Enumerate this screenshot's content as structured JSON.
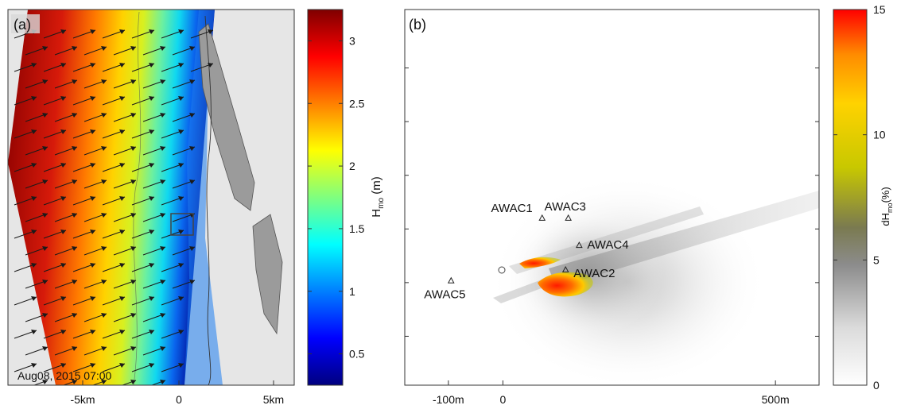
{
  "chart_data": [
    {
      "type": "heatmap",
      "panel_label": "(a)",
      "timestamp": "Aug08, 2015 07:00",
      "x_ticks": [
        "-5km",
        "0",
        "5km"
      ],
      "colorbar": {
        "label_main": "H",
        "label_sub": "mo",
        "label_unit": " (m)",
        "range": [
          0.25,
          3.25
        ],
        "ticks": [
          "0.5",
          "1",
          "1.5",
          "2",
          "2.5",
          "3"
        ],
        "tick_values": [
          0.5,
          1,
          1.5,
          2,
          2.5,
          3
        ],
        "colormap": [
          "#00007f",
          "#0000ff",
          "#007fff",
          "#00ffff",
          "#7fff7f",
          "#ffff00",
          "#ff7f00",
          "#ff0000",
          "#7f0000"
        ]
      },
      "features": [
        "wave direction arrows",
        "coastline",
        "study-area box"
      ]
    },
    {
      "type": "heatmap",
      "panel_label": "(b)",
      "x_ticks": [
        "-100m",
        "0",
        "500m"
      ],
      "x_tick_values": [
        -100,
        0,
        500
      ],
      "xlim": [
        -180,
        580
      ],
      "colorbar": {
        "label_main": "dH",
        "label_sub": "mo",
        "label_unit": "(%)",
        "range": [
          0,
          15
        ],
        "ticks": [
          "0",
          "5",
          "10",
          "15"
        ],
        "tick_values": [
          0,
          5,
          10,
          15
        ],
        "colormap": [
          "#ffffff",
          "#d9d9d9",
          "#6e6e6e",
          "#c8c800",
          "#ffd200",
          "#ff8c00",
          "#ff0000"
        ]
      },
      "stations": [
        {
          "name": "AWAC1",
          "x": 72,
          "y": 95
        },
        {
          "name": "AWAC3",
          "x": 120,
          "y": 95
        },
        {
          "name": "AWAC4",
          "x": 140,
          "y": 45
        },
        {
          "name": "AWAC2",
          "x": 115,
          "y": 0
        },
        {
          "name": "AWAC5",
          "x": -95,
          "y": -20
        }
      ]
    }
  ]
}
